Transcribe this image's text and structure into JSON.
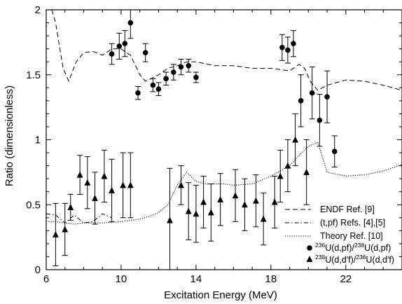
{
  "chart_data": {
    "type": "scatter",
    "xlabel": "Excitation Energy (MeV)",
    "ylabel": "Ratio (dimensionless)",
    "xlim": [
      6,
      25
    ],
    "ylim": [
      0,
      2
    ],
    "xticks": [
      "6",
      "10",
      "14",
      "18",
      "22"
    ],
    "yticks": [
      "0",
      "0.5",
      "1",
      "1.5",
      "2"
    ],
    "grid": false,
    "legend_position": "bottom-right",
    "legend": {
      "endf": "ENDF Ref. [9]",
      "tpf": "(t,pf) Refs. [4],[5]",
      "theory": "Theory Ref. [10]",
      "circles": {
        "iso1": "236",
        "part1": "U(d,pf)/",
        "iso2": "238",
        "part2": "U(d,pf)"
      },
      "triangles": {
        "iso1": "238",
        "part1": "U(d,d′f)/",
        "iso2": "236",
        "part2": "U(d,d′f)"
      }
    },
    "series": [
      {
        "kind": "line",
        "style": "dashed",
        "legend_key": "endf",
        "x": [
          6.3,
          6.5,
          6.9,
          7.2,
          7.6,
          8.0,
          8.5,
          9.0,
          9.5,
          10.0,
          10.5,
          11.0,
          11.3,
          11.6,
          12.0,
          12.5,
          13.0,
          13.5,
          14.0,
          15.0,
          16.0,
          17.0,
          18.0,
          19.0,
          19.5,
          19.8,
          20.1,
          20.5,
          21.0,
          22.0,
          23.0,
          24.0,
          25.0
        ],
        "y": [
          2.0,
          1.9,
          1.55,
          1.45,
          1.6,
          1.67,
          1.68,
          1.65,
          1.7,
          1.7,
          1.65,
          1.5,
          1.45,
          1.47,
          1.5,
          1.55,
          1.57,
          1.6,
          1.6,
          1.57,
          1.57,
          1.55,
          1.55,
          1.53,
          1.58,
          1.55,
          1.45,
          1.38,
          1.42,
          1.46,
          1.45,
          1.42,
          1.38
        ]
      },
      {
        "kind": "line",
        "style": "dashdot",
        "legend_key": "tpf",
        "x": [
          6.0,
          6.5,
          7.0,
          7.5,
          8.0,
          8.5,
          9.0,
          9.5
        ],
        "y": [
          0.43,
          0.42,
          0.36,
          0.42,
          0.36,
          0.37,
          0.43,
          0.4
        ]
      },
      {
        "kind": "line",
        "style": "dotted",
        "legend_key": "theory",
        "x": [
          6.0,
          6.5,
          7.0,
          7.5,
          8.0,
          8.5,
          9.0,
          10.0,
          11.0,
          11.5,
          12.0,
          12.5,
          13.0,
          13.5,
          14.0,
          14.5,
          15.0,
          15.5,
          16.0,
          17.0,
          18.0,
          19.0,
          19.5,
          20.0,
          20.5,
          21.0,
          22.0,
          23.0,
          24.0,
          25.0
        ],
        "y": [
          0.37,
          0.37,
          0.36,
          0.35,
          0.36,
          0.36,
          0.36,
          0.37,
          0.39,
          0.41,
          0.44,
          0.5,
          0.65,
          0.75,
          0.68,
          0.66,
          0.66,
          0.66,
          0.65,
          0.66,
          0.72,
          0.8,
          0.88,
          0.95,
          0.98,
          0.75,
          0.72,
          0.73,
          0.76,
          0.81
        ]
      },
      {
        "kind": "points",
        "marker": "circle",
        "legend_key": "circles",
        "x": [
          9.5,
          9.9,
          10.2,
          10.5,
          10.9,
          11.3,
          11.7,
          12.0,
          12.4,
          12.8,
          13.2,
          13.6,
          14.0,
          18.6,
          18.9,
          19.2,
          19.6,
          20.2,
          20.6,
          21.0,
          21.4
        ],
        "y": [
          1.66,
          1.72,
          1.74,
          1.9,
          1.36,
          1.67,
          1.42,
          1.39,
          1.47,
          1.52,
          1.56,
          1.57,
          1.48,
          1.71,
          1.69,
          1.74,
          1.3,
          1.36,
          1.15,
          1.33,
          0.91
        ],
        "err": [
          0.08,
          0.1,
          0.1,
          0.12,
          0.05,
          0.07,
          0.05,
          0.05,
          0.05,
          0.06,
          0.06,
          0.05,
          0.04,
          0.1,
          0.1,
          0.1,
          0.2,
          0.2,
          0.2,
          0.2,
          0.12
        ]
      },
      {
        "kind": "points",
        "marker": "triangle",
        "legend_key": "triangles",
        "x": [
          6.5,
          7.0,
          7.3,
          7.8,
          8.2,
          8.6,
          9.1,
          9.5,
          10.1,
          10.5,
          12.6,
          13.2,
          13.6,
          14.0,
          14.4,
          14.8,
          15.3,
          16.1,
          16.6,
          17.2,
          17.6,
          18.2,
          18.5,
          18.9,
          19.3,
          19.9
        ],
        "y": [
          0.27,
          0.31,
          0.48,
          0.73,
          0.67,
          0.55,
          0.72,
          0.61,
          0.65,
          0.65,
          0.38,
          0.65,
          0.45,
          0.43,
          0.52,
          0.44,
          0.54,
          0.57,
          0.5,
          0.53,
          0.39,
          0.52,
          0.72,
          0.8,
          1.0,
          0.75
        ],
        "err": [
          0.24,
          0.2,
          0.1,
          0.15,
          0.2,
          0.2,
          0.2,
          0.24,
          0.25,
          0.25,
          0.4,
          0.15,
          0.22,
          0.22,
          0.2,
          0.22,
          0.2,
          0.2,
          0.2,
          0.2,
          0.2,
          0.2,
          0.2,
          0.2,
          0.2,
          0.25
        ]
      }
    ]
  }
}
